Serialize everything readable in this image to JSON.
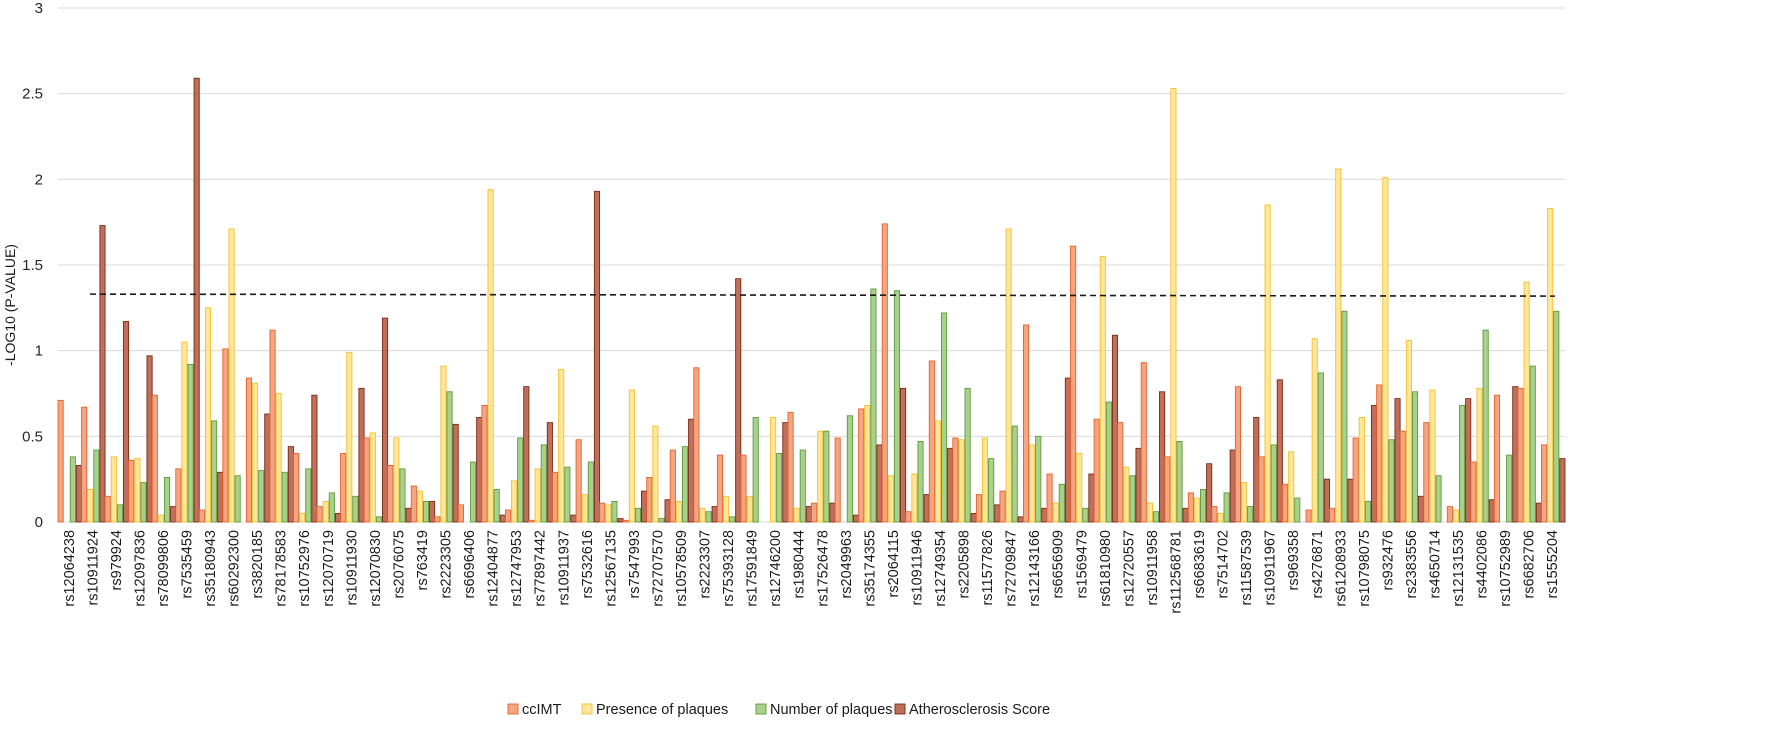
{
  "chart_data": {
    "type": "bar",
    "title": "",
    "xlabel": "",
    "ylabel": "-LOG10 (P-VALUE)",
    "ylim": [
      0,
      3
    ],
    "yticks": [
      0,
      0.5,
      1,
      1.5,
      2,
      2.5,
      3
    ],
    "grid": true,
    "legend_position": "bottom-center",
    "threshold_line": {
      "value": 1.33,
      "style": "dashed"
    },
    "categories": [
      "rs12064238",
      "rs10911924",
      "rs979924",
      "rs12097836",
      "rs78099806",
      "rs7535459",
      "rs35180943",
      "rs60292300",
      "rs3820185",
      "rs78178583",
      "rs10752976",
      "rs12070719",
      "rs10911930",
      "rs12070830",
      "rs2076075",
      "rs763419",
      "rs2223305",
      "rs6696406",
      "rs12404877",
      "rs12747953",
      "rs77897442",
      "rs10911937",
      "rs7532616",
      "rs12567135",
      "rs7547993",
      "rs72707570",
      "rs10578509",
      "rs2223307",
      "rs75393128",
      "rs17591849",
      "rs12746200",
      "rs1980444",
      "rs17526478",
      "rs2049963",
      "rs35174355",
      "rs2064115",
      "rs10911946",
      "rs12749354",
      "rs2205898",
      "rs11577826",
      "rs72709847",
      "rs12143166",
      "rs6656909",
      "rs1569479",
      "rs61810980",
      "rs12720557",
      "rs10911958",
      "rs112568781",
      "rs6683619",
      "rs7514702",
      "rs11587539",
      "rs10911967",
      "rs969358",
      "rs4276871",
      "rs61208933",
      "rs10798075",
      "rs932476",
      "rs2383556",
      "rs4650714",
      "rs12131535",
      "rs4402086",
      "rs10752989",
      "rs6682706",
      "rs1555204"
    ],
    "series": [
      {
        "name": "ccIMT",
        "color": "#F4A582",
        "border": "#E8612C",
        "values": [
          0.71,
          0.67,
          0.15,
          0.36,
          0.74,
          0.31,
          0.07,
          1.01,
          0.84,
          1.12,
          0.4,
          0.09,
          0.4,
          0.49,
          0.33,
          0.21,
          0.03,
          0.1,
          0.68,
          0.07,
          0.01,
          0.29,
          0.48,
          0.11,
          0.01,
          0.26,
          0.42,
          0.9,
          0.39,
          0.39,
          0.0,
          0.64,
          0.11,
          0.49,
          0.66,
          1.74,
          0.06,
          0.94,
          0.49,
          0.16,
          0.18,
          1.15,
          0.28,
          1.61,
          0.6,
          0.58,
          0.93,
          0.38,
          0.17,
          0.09,
          0.79,
          0.38,
          0.22,
          0.07,
          0.08,
          0.49,
          0.8,
          0.53,
          0.58,
          0.09,
          0.35,
          0.74,
          0.78,
          0.45
        ]
      },
      {
        "name": "Presence of plaques",
        "color": "#FFE699",
        "border": "#F2C12E",
        "values": [
          0.0,
          0.19,
          0.38,
          0.37,
          0.04,
          1.05,
          1.25,
          1.71,
          0.81,
          0.75,
          0.05,
          0.12,
          0.99,
          0.52,
          0.49,
          0.18,
          0.91,
          0.0,
          1.94,
          0.24,
          0.31,
          0.89,
          0.16,
          0.1,
          0.77,
          0.56,
          0.12,
          0.08,
          0.15,
          0.15,
          0.61,
          0.08,
          0.53,
          0.0,
          0.68,
          0.27,
          0.28,
          0.59,
          0.48,
          0.49,
          1.71,
          0.45,
          0.11,
          0.4,
          1.55,
          0.32,
          0.11,
          2.53,
          0.14,
          0.05,
          0.23,
          1.85,
          0.41,
          1.07,
          2.06,
          0.61,
          2.01,
          1.06,
          0.77,
          0.07,
          0.78,
          0.0,
          1.4,
          1.83
        ]
      },
      {
        "name": "Number of plaques",
        "color": "#A9D18E",
        "border": "#5E9A3A",
        "values": [
          0.38,
          0.42,
          0.1,
          0.23,
          0.26,
          0.92,
          0.59,
          0.27,
          0.3,
          0.29,
          0.31,
          0.17,
          0.15,
          0.03,
          0.31,
          0.12,
          0.76,
          0.35,
          0.19,
          0.49,
          0.45,
          0.32,
          0.35,
          0.12,
          0.08,
          0.02,
          0.44,
          0.06,
          0.03,
          0.61,
          0.4,
          0.42,
          0.53,
          0.62,
          1.36,
          1.35,
          0.47,
          1.22,
          0.78,
          0.37,
          0.56,
          0.5,
          0.22,
          0.08,
          0.7,
          0.27,
          0.06,
          0.47,
          0.19,
          0.17,
          0.09,
          0.45,
          0.14,
          0.87,
          1.23,
          0.12,
          0.48,
          0.76,
          0.27,
          0.68,
          1.12,
          0.39,
          0.91,
          1.23
        ]
      },
      {
        "name": "Atherosclerosis Score",
        "color": "#C0705A",
        "border": "#7A2A14",
        "values": [
          0.33,
          1.73,
          1.17,
          0.97,
          0.09,
          2.59,
          0.29,
          0.0,
          0.63,
          0.44,
          0.74,
          0.05,
          0.78,
          1.19,
          0.08,
          0.12,
          0.57,
          0.61,
          0.04,
          0.79,
          0.58,
          0.04,
          1.93,
          0.02,
          0.18,
          0.13,
          0.6,
          0.09,
          1.42,
          0.0,
          0.58,
          0.09,
          0.11,
          0.04,
          0.45,
          0.78,
          0.16,
          0.43,
          0.05,
          0.1,
          0.03,
          0.08,
          0.84,
          0.28,
          1.09,
          0.43,
          0.76,
          0.08,
          0.34,
          0.42,
          0.61,
          0.83,
          0.0,
          0.25,
          0.25,
          0.68,
          0.72,
          0.15,
          0.0,
          0.72,
          0.13,
          0.79,
          0.11,
          0.37
        ]
      }
    ]
  }
}
